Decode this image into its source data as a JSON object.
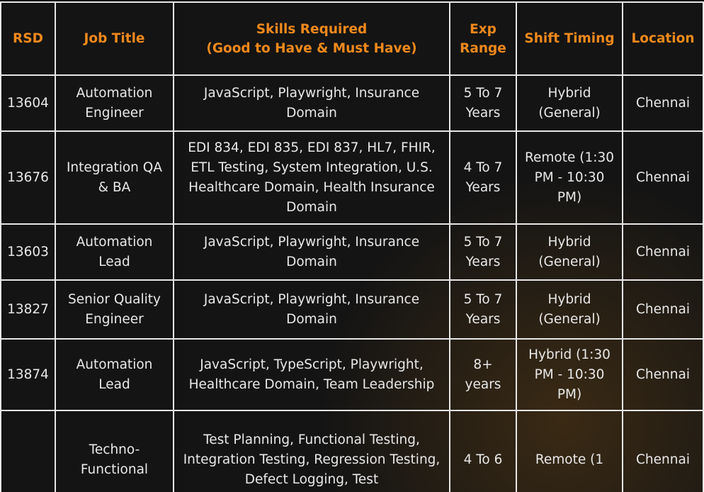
{
  "table": {
    "header": [
      [
        "RSD"
      ],
      [
        "Job Title"
      ],
      [
        "Skills Required",
        "(Good to Have & Must Have)"
      ],
      [
        "Exp",
        "Range"
      ],
      [
        "Shift Timing"
      ],
      [
        "Location"
      ]
    ],
    "rows": [
      [
        "13604",
        "Automation Engineer",
        "JavaScript, Playwright, Insurance Domain",
        "5 To 7 Years",
        "Hybrid (General)",
        "Chennai"
      ],
      [
        "13676",
        "Integration QA & BA",
        "EDI 834, EDI 835, EDI 837, HL7, FHIR, ETL Testing, System Integration, U.S. Healthcare Domain, Health Insurance Domain",
        "4 To 7 Years",
        "Remote (1:30 PM - 10:30 PM)",
        "Chennai"
      ],
      [
        "13603",
        "Automation Lead",
        "JavaScript, Playwright, Insurance Domain",
        "5 To 7 Years",
        "Hybrid (General)",
        "Chennai"
      ],
      [
        "13827",
        "Senior Quality Engineer",
        "JavaScript, Playwright, Insurance Domain",
        "5 To 7 Years",
        "Hybrid (General)",
        "Chennai"
      ],
      [
        "13874",
        "Automation Lead",
        "JavaScript, TypeScript, Playwright, Healthcare Domain, Team Leadership",
        "8+ years",
        "Hybrid (1:30 PM - 10:30 PM)",
        "Chennai"
      ],
      [
        "",
        "Techno-Functional",
        "Test Planning, Functional Testing, Integration Testing, Regression Testing, Defect Logging, Test",
        "4 To 6",
        "Remote (1",
        "Chennai"
      ]
    ]
  }
}
